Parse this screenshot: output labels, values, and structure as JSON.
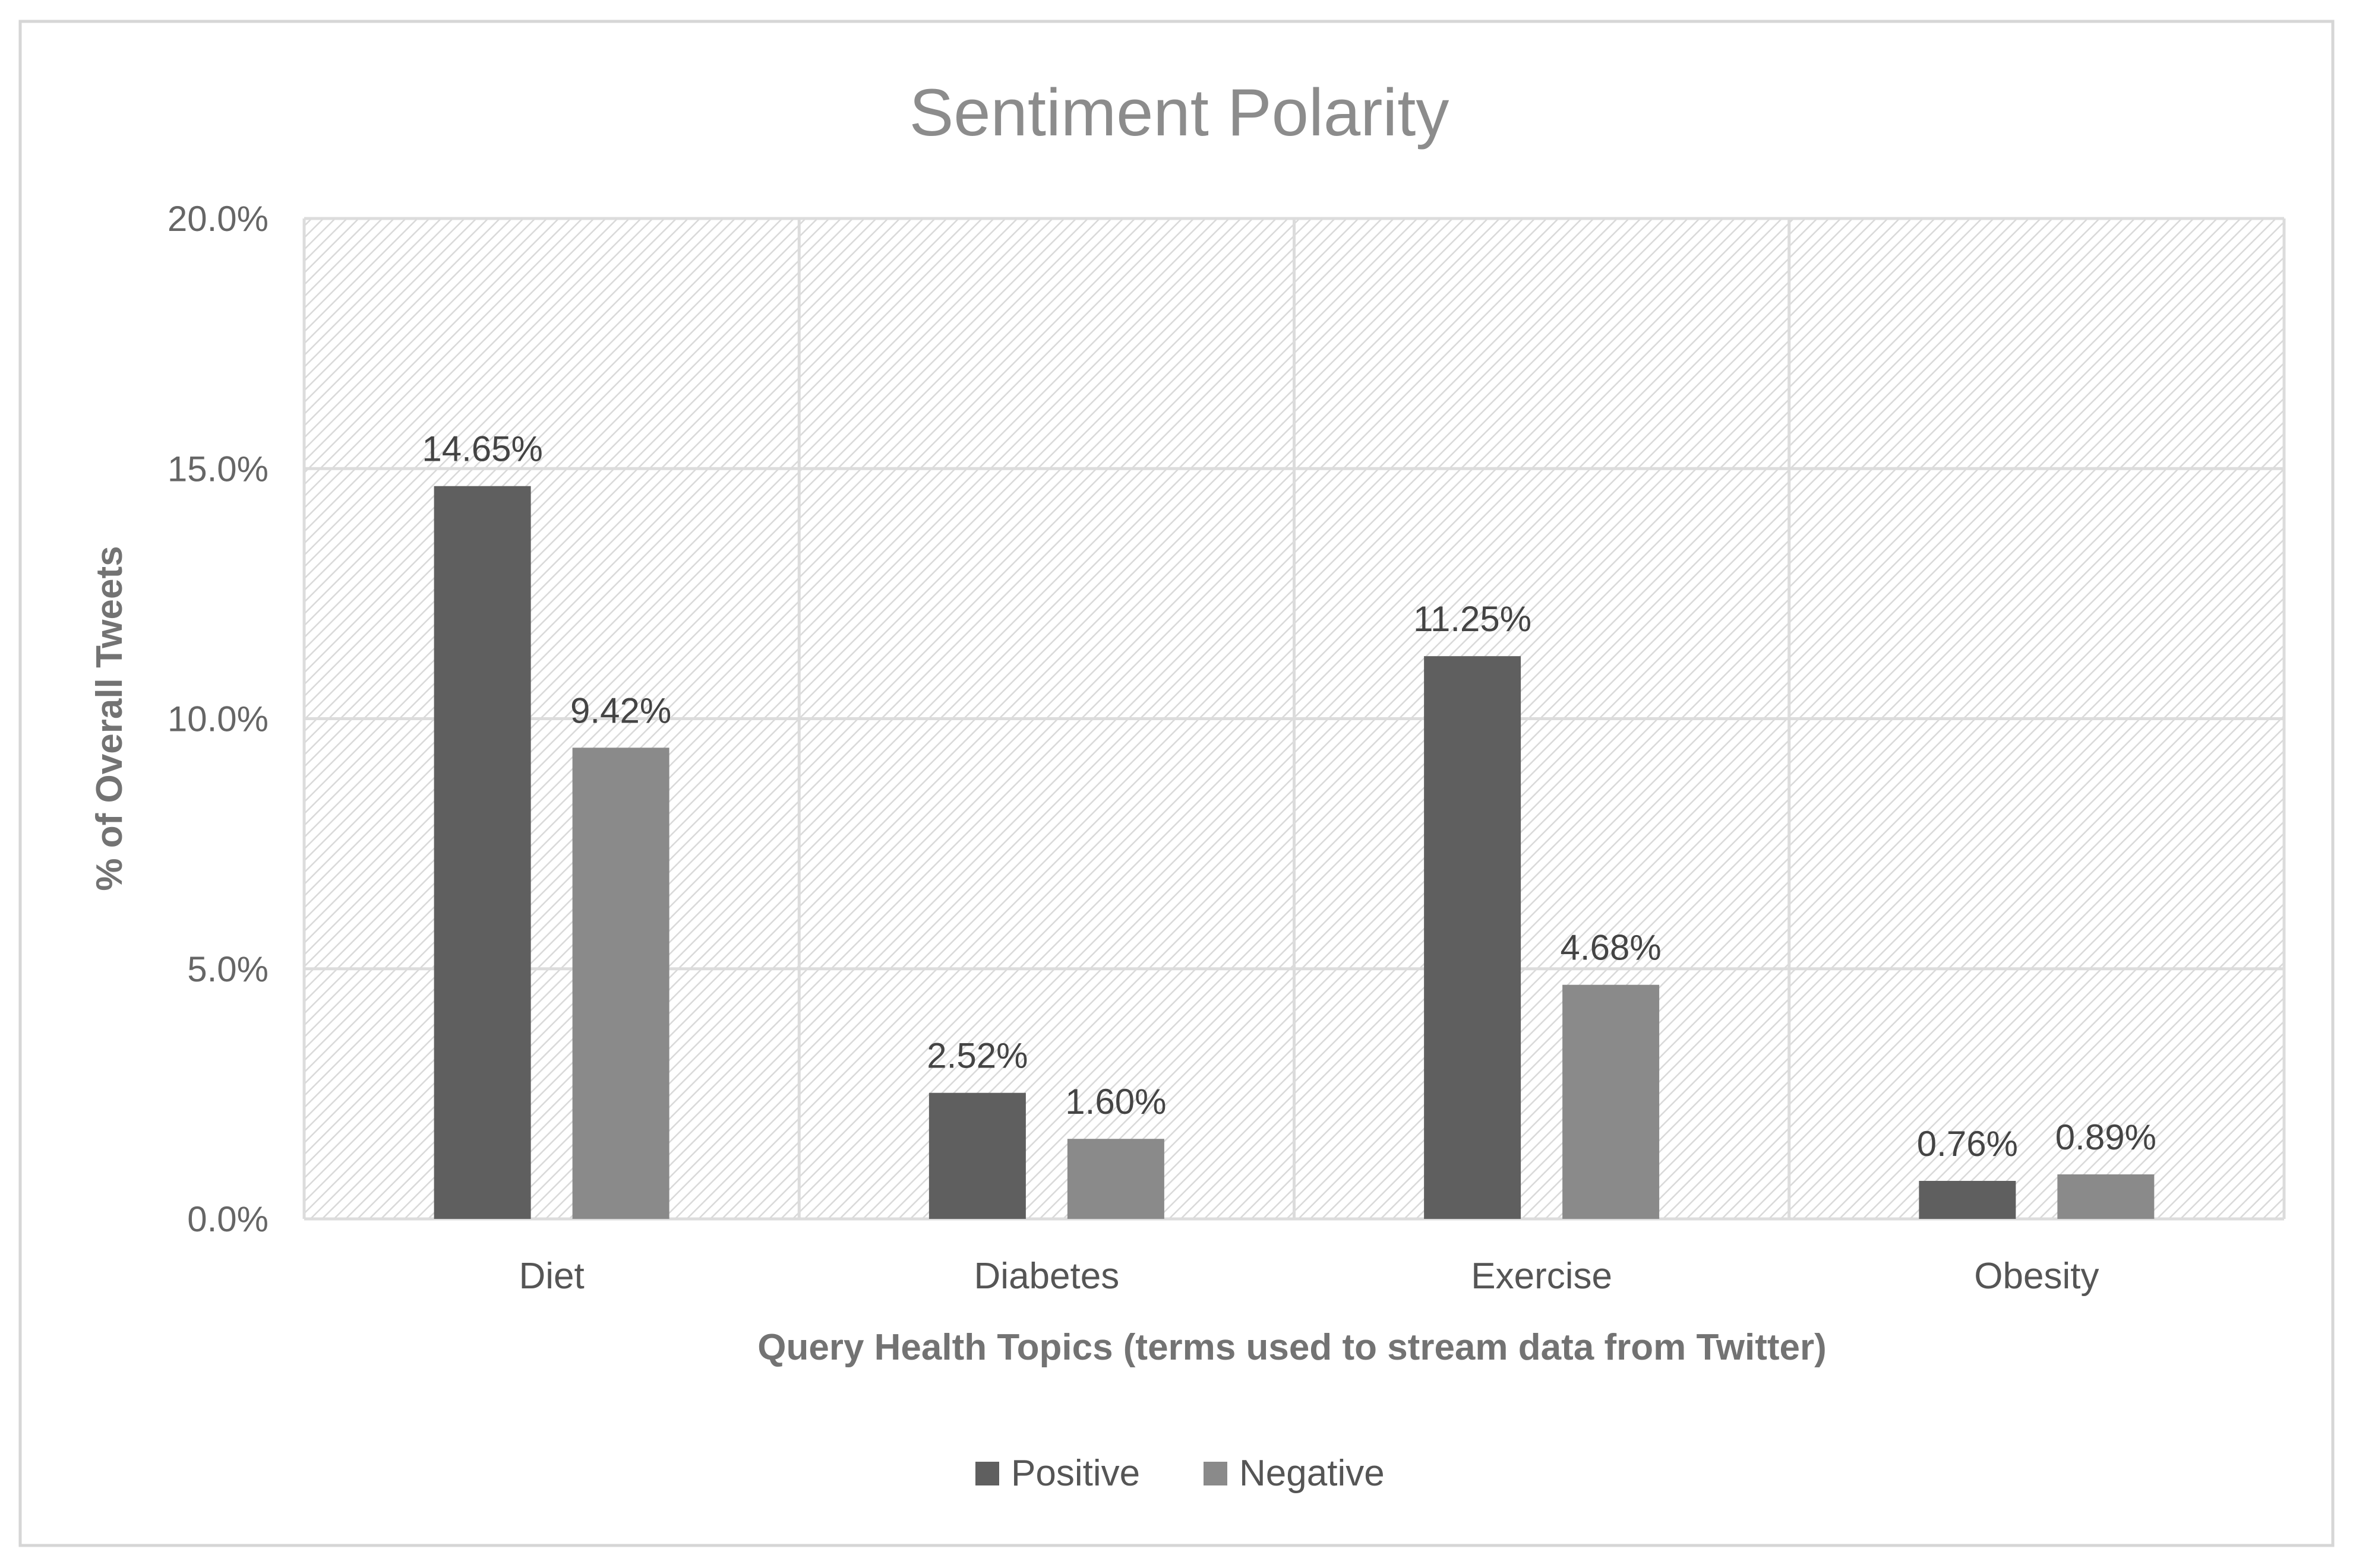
{
  "chart_data": {
    "type": "bar",
    "title": "Sentiment Polarity",
    "xlabel": "Query Health Topics (terms used to stream data from Twitter)",
    "ylabel": "%  of Overall Tweets",
    "categories": [
      "Diet",
      "Diabetes",
      "Exercise",
      "Obesity"
    ],
    "series": [
      {
        "name": "Positive",
        "color": "#5f5f5f",
        "values": [
          14.65,
          2.52,
          11.25,
          0.76
        ],
        "labels": [
          "14.65%",
          "2.52%",
          "11.25%",
          "0.76%"
        ]
      },
      {
        "name": "Negative",
        "color": "#8a8a8a",
        "values": [
          9.42,
          1.6,
          4.68,
          0.89
        ],
        "labels": [
          "9.42%",
          "1.60%",
          "4.68%",
          "0.89%"
        ]
      }
    ],
    "ylim": [
      0,
      20
    ],
    "yticks": [
      0,
      5,
      10,
      15,
      20
    ],
    "ytick_labels": [
      "0.0%",
      "5.0%",
      "10.0%",
      "15.0%",
      "20.0%"
    ],
    "grid": true,
    "legend_position": "bottom"
  },
  "colors": {
    "plot_hatch": "#d9d9d9",
    "gridline": "#dcdcdc",
    "frame": "#d6d6d6"
  }
}
